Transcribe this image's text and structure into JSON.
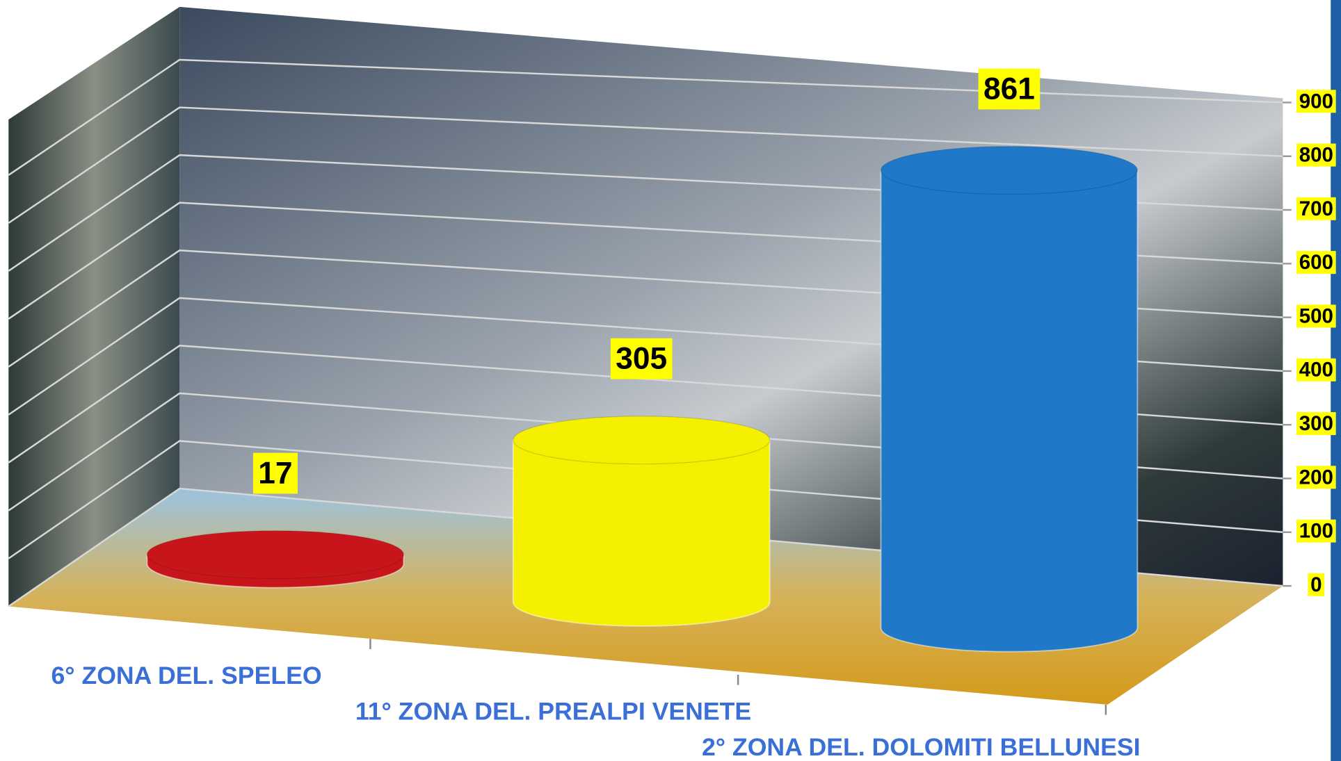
{
  "chart_data": {
    "type": "bar3d",
    "categories": [
      "6° ZONA DEL. SPELEO",
      "11° ZONA DEL. PREALPI VENETE",
      "2° ZONA DEL. DOLOMITI BELLUNESI"
    ],
    "values": [
      17,
      305,
      861
    ],
    "colors": [
      "#c8151b",
      "#f4f000",
      "#1f78c8"
    ],
    "ylim": [
      0,
      900
    ],
    "yticks": [
      0,
      100,
      200,
      300,
      400,
      500,
      600,
      700,
      800,
      900
    ],
    "grid": true
  }
}
